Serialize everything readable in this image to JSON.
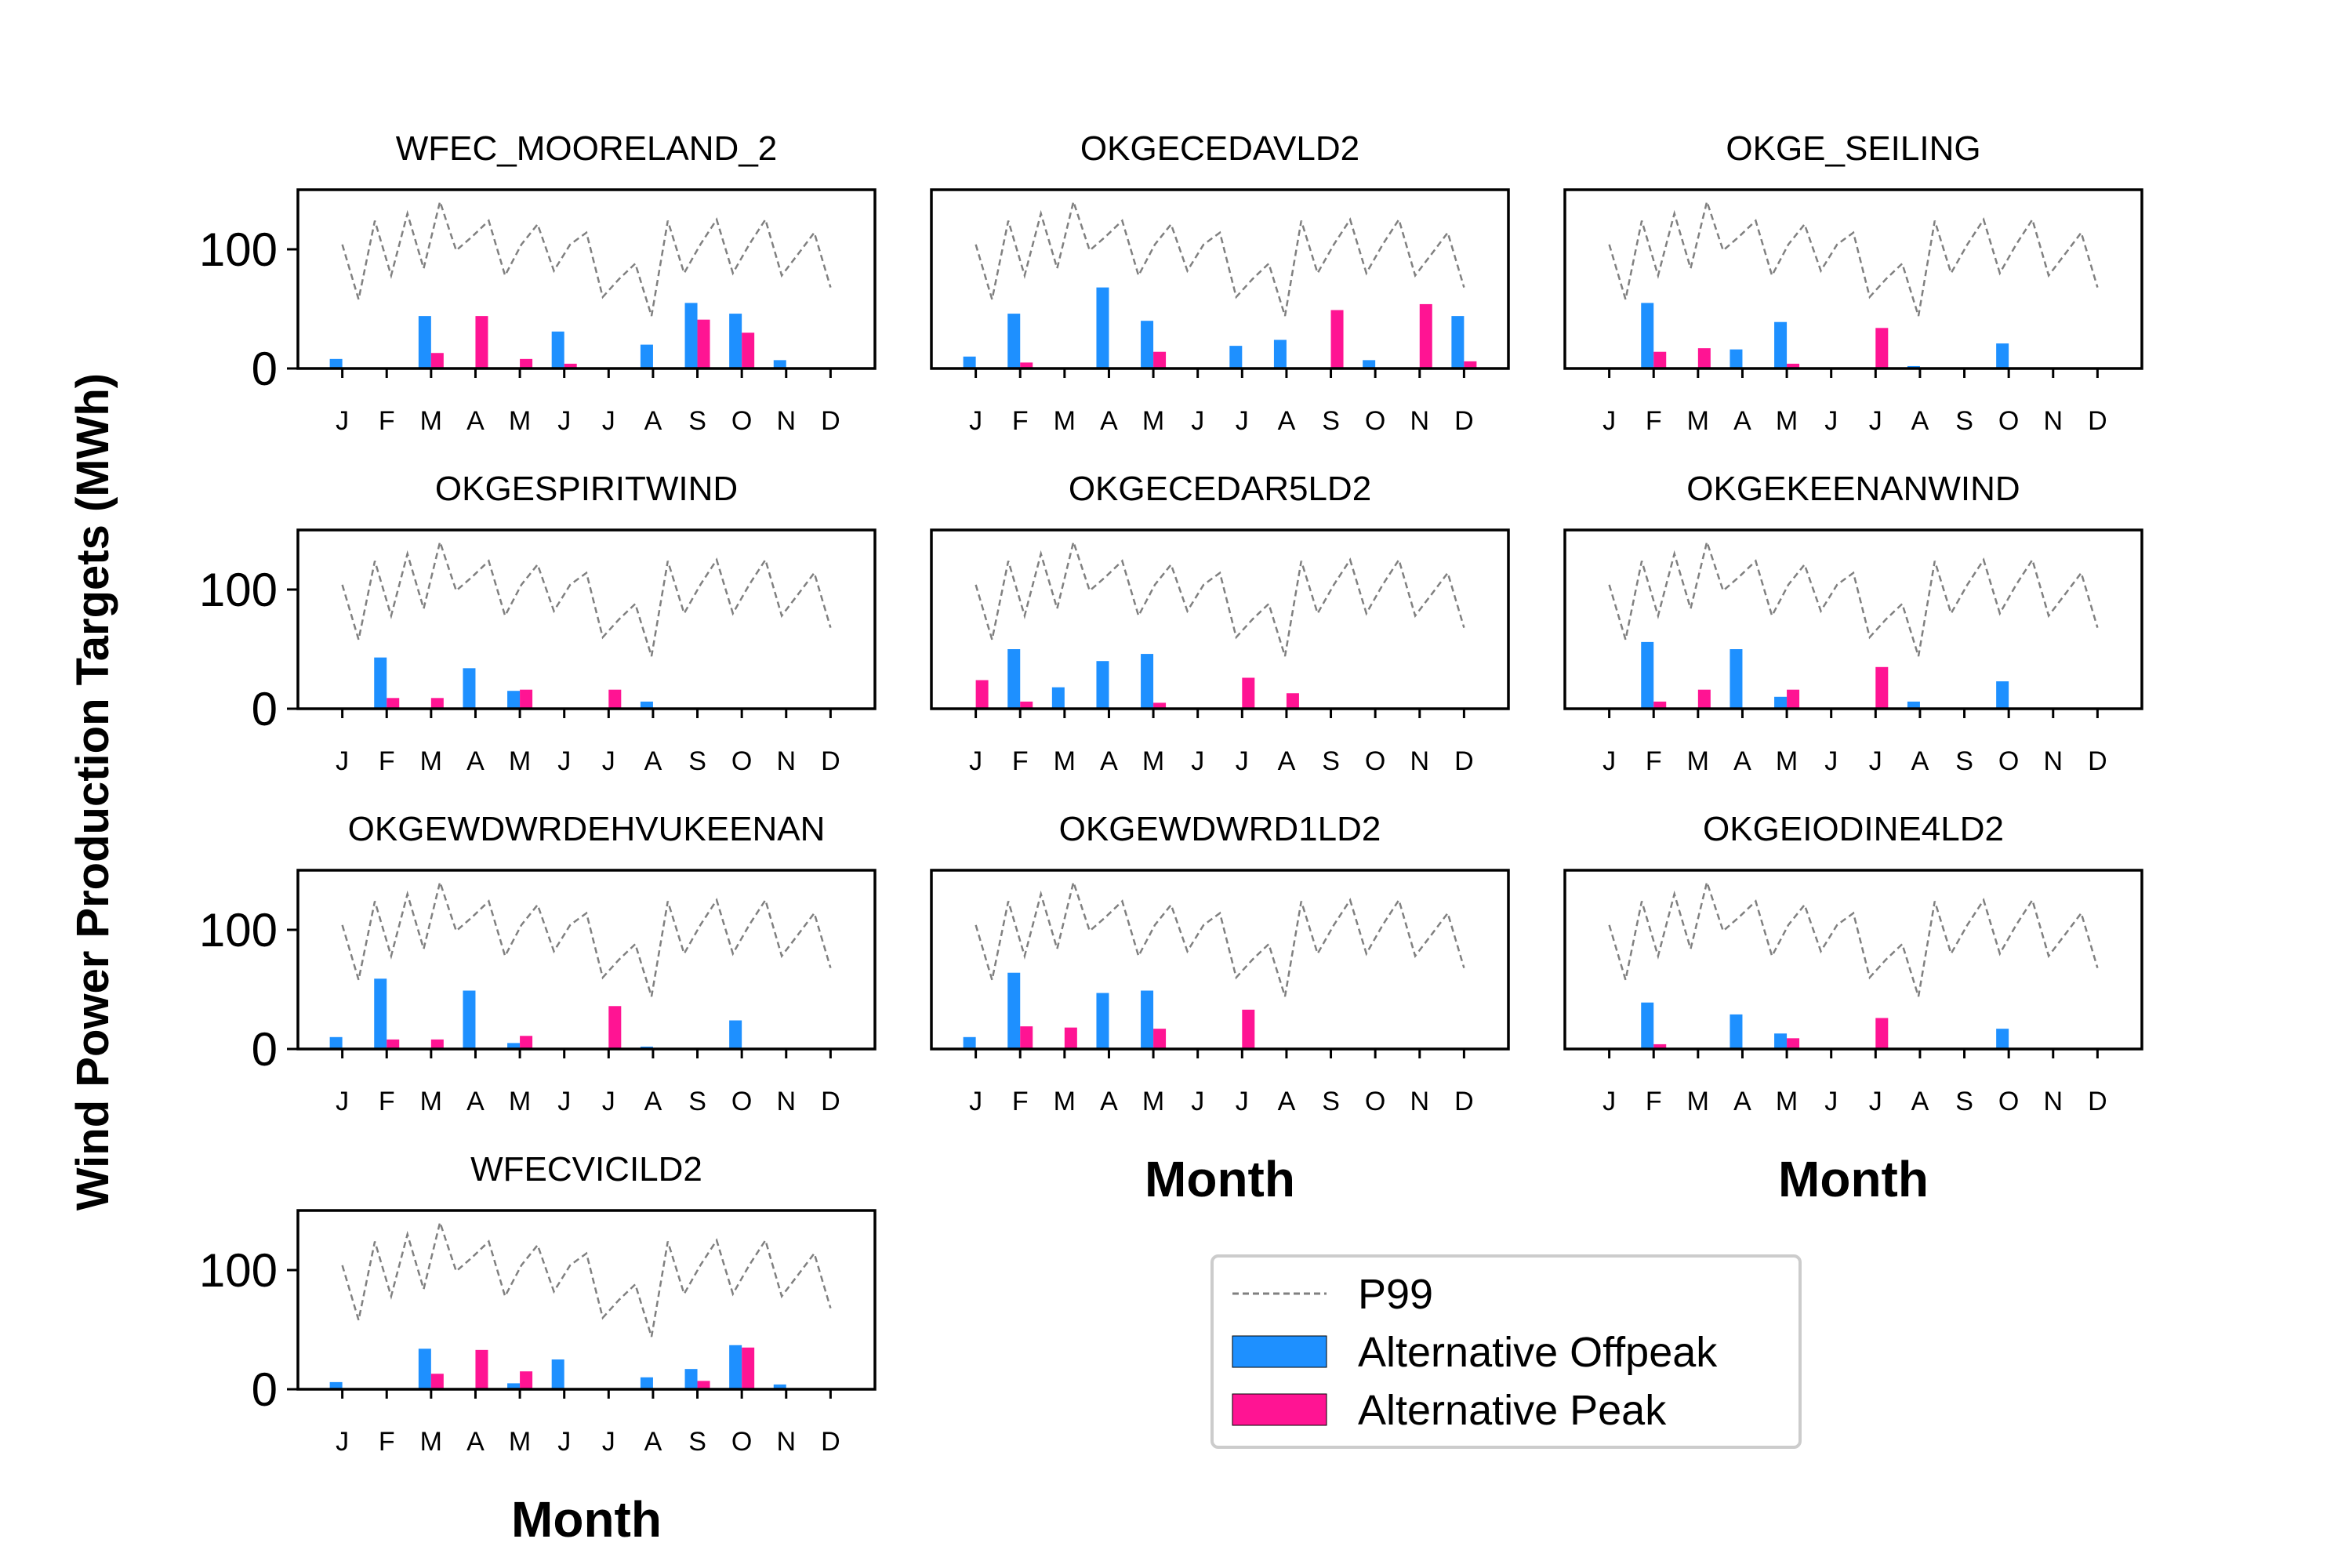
{
  "chart_data": {
    "type": "bar",
    "ylabel": "Wind Power Production Targets (MWh)",
    "xlabel": "Month",
    "ylim": [
      0,
      150
    ],
    "yticks": [
      0,
      100
    ],
    "month_labels": [
      "J",
      "F",
      "M",
      "A",
      "M",
      "J",
      "J",
      "A",
      "S",
      "O",
      "N",
      "D"
    ],
    "legend": {
      "placement": "lower-right",
      "entries": [
        "P99",
        "Alternative Offpeak",
        "Alternative Peak"
      ]
    },
    "colors": {
      "offpeak": "#1E90FF",
      "peak": "#FF1493",
      "p99": "#808080"
    },
    "p99_series": [
      104,
      58,
      124,
      78,
      130,
      84,
      140,
      99,
      111,
      124,
      78,
      104,
      121,
      82,
      104,
      114,
      60,
      75,
      88,
      44,
      124,
      80,
      104,
      125,
      80,
      104,
      125,
      78,
      96,
      114,
      68
    ],
    "panels": [
      {
        "title": "WFEC_MOORELAND_2",
        "offpeak": [
          8,
          0,
          44,
          0,
          0,
          31,
          0,
          20,
          55,
          46,
          7,
          0
        ],
        "peak": [
          0,
          0,
          13,
          44,
          8,
          4,
          0,
          0,
          41,
          30,
          0,
          0
        ]
      },
      {
        "title": "OKGECEDAVLD2",
        "offpeak": [
          10,
          46,
          0,
          68,
          40,
          0,
          19,
          24,
          0,
          7,
          0,
          44
        ],
        "peak": [
          0,
          5,
          0,
          0,
          14,
          0,
          0,
          0,
          49,
          0,
          54,
          6
        ]
      },
      {
        "title": "OKGE_SEILING",
        "offpeak": [
          0,
          55,
          0,
          16,
          39,
          0,
          0,
          2,
          0,
          21,
          0,
          0
        ],
        "peak": [
          0,
          14,
          17,
          0,
          4,
          0,
          34,
          0,
          0,
          0,
          0,
          0
        ]
      },
      {
        "title": "OKGESPIRITWIND",
        "offpeak": [
          0,
          43,
          0,
          34,
          15,
          0,
          0,
          6,
          0,
          0,
          0,
          0
        ],
        "peak": [
          0,
          9,
          9,
          0,
          16,
          0,
          16,
          0,
          0,
          0,
          0,
          0
        ]
      },
      {
        "title": "OKGECEDAR5LD2",
        "offpeak": [
          0,
          50,
          18,
          40,
          46,
          0,
          0,
          0,
          0,
          0,
          0,
          0
        ],
        "peak": [
          24,
          6,
          0,
          0,
          5,
          0,
          26,
          13,
          0,
          0,
          0,
          0
        ]
      },
      {
        "title": "OKGEKEENANWIND",
        "offpeak": [
          0,
          56,
          0,
          50,
          10,
          0,
          0,
          6,
          0,
          23,
          0,
          0
        ],
        "peak": [
          0,
          6,
          16,
          0,
          16,
          0,
          35,
          0,
          0,
          0,
          0,
          0
        ]
      },
      {
        "title": "OKGEWDWRDEHVUKEENAN",
        "offpeak": [
          10,
          59,
          0,
          49,
          5,
          0,
          0,
          2,
          0,
          24,
          0,
          0
        ],
        "peak": [
          0,
          8,
          8,
          0,
          11,
          0,
          36,
          0,
          0,
          0,
          0,
          0
        ]
      },
      {
        "title": "OKGEWDWRD1LD2",
        "offpeak": [
          10,
          64,
          0,
          47,
          49,
          0,
          0,
          0,
          0,
          0,
          0,
          0
        ],
        "peak": [
          0,
          19,
          18,
          0,
          17,
          0,
          33,
          0,
          0,
          0,
          0,
          0
        ]
      },
      {
        "title": "OKGEIODINE4LD2",
        "offpeak": [
          0,
          39,
          0,
          29,
          13,
          0,
          0,
          0,
          0,
          17,
          0,
          0
        ],
        "peak": [
          0,
          4,
          0,
          0,
          9,
          0,
          26,
          0,
          0,
          0,
          0,
          0
        ]
      },
      {
        "title": "WFECVICILD2",
        "offpeak": [
          6,
          1,
          34,
          0,
          5,
          25,
          0,
          10,
          17,
          37,
          4,
          0
        ],
        "peak": [
          0,
          0,
          13,
          33,
          15,
          0,
          0,
          0,
          7,
          35,
          0,
          0
        ]
      }
    ]
  }
}
